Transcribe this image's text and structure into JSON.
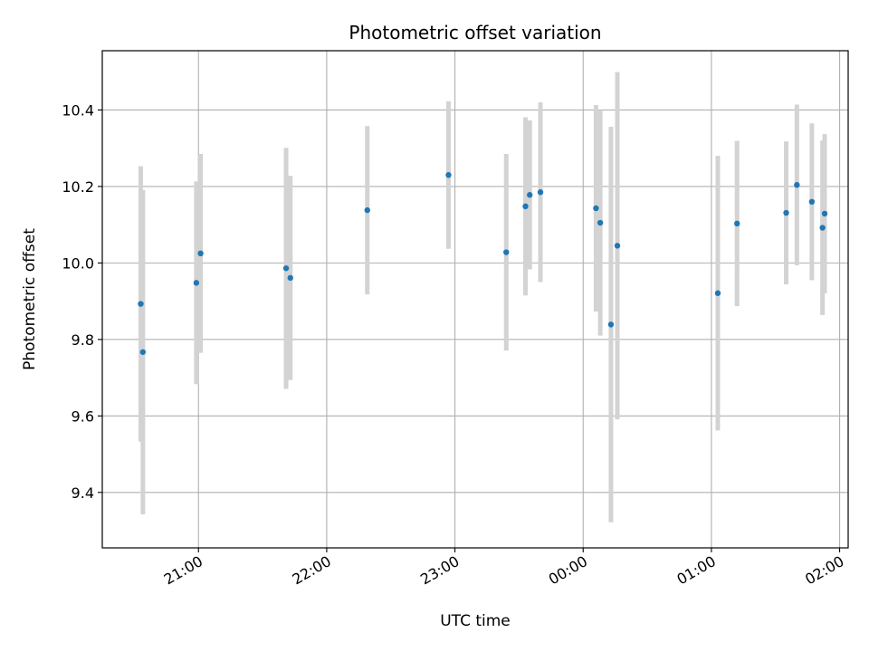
{
  "chart_data": {
    "type": "scatter",
    "title": "Photometric offset variation",
    "xlabel": "UTC time",
    "ylabel": "Photometric offset",
    "x_unit": "UTC time, hh:mm (times after midnight written as 24:xx / 25:xx)",
    "xlim": [
      "20:15",
      "26:04"
    ],
    "ylim": [
      9.255,
      10.555
    ],
    "x_ticks": [
      {
        "t": "21:00",
        "label": "21:00"
      },
      {
        "t": "22:00",
        "label": "22:00"
      },
      {
        "t": "23:00",
        "label": "23:00"
      },
      {
        "t": "24:00",
        "label": "00:00"
      },
      {
        "t": "25:00",
        "label": "01:00"
      },
      {
        "t": "26:00",
        "label": "02:00"
      }
    ],
    "y_ticks": [
      {
        "v": 9.4,
        "label": "9.4"
      },
      {
        "v": 9.6,
        "label": "9.6"
      },
      {
        "v": 9.8,
        "label": "9.8"
      },
      {
        "v": 10.0,
        "label": "10.0"
      },
      {
        "v": 10.2,
        "label": "10.2"
      },
      {
        "v": 10.4,
        "label": "10.4"
      }
    ],
    "grid": true,
    "marker_color": "#1f77b4",
    "errorbar_color": "#d3d3d3",
    "series": [
      {
        "points": [
          {
            "t": "20:33",
            "y": 9.893,
            "lo": 9.533,
            "hi": 10.253
          },
          {
            "t": "20:34",
            "y": 9.767,
            "lo": 9.343,
            "hi": 10.191
          },
          {
            "t": "20:59",
            "y": 9.948,
            "lo": 9.683,
            "hi": 10.213
          },
          {
            "t": "21:01",
            "y": 10.025,
            "lo": 9.765,
            "hi": 10.285
          },
          {
            "t": "21:41",
            "y": 9.986,
            "lo": 9.671,
            "hi": 10.301
          },
          {
            "t": "21:43",
            "y": 9.961,
            "lo": 9.694,
            "hi": 10.228
          },
          {
            "t": "22:19",
            "y": 10.138,
            "lo": 9.918,
            "hi": 10.358
          },
          {
            "t": "22:57",
            "y": 10.23,
            "lo": 10.037,
            "hi": 10.423
          },
          {
            "t": "23:24",
            "y": 10.028,
            "lo": 9.771,
            "hi": 10.285
          },
          {
            "t": "23:33",
            "y": 10.148,
            "lo": 9.915,
            "hi": 10.381
          },
          {
            "t": "23:35",
            "y": 10.178,
            "lo": 9.983,
            "hi": 10.373
          },
          {
            "t": "23:40",
            "y": 10.185,
            "lo": 9.95,
            "hi": 10.42
          },
          {
            "t": "24:06",
            "y": 10.143,
            "lo": 9.873,
            "hi": 10.413
          },
          {
            "t": "24:08",
            "y": 10.105,
            "lo": 9.81,
            "hi": 10.4
          },
          {
            "t": "24:13",
            "y": 9.839,
            "lo": 9.322,
            "hi": 10.356
          },
          {
            "t": "24:16",
            "y": 10.045,
            "lo": 9.591,
            "hi": 10.499
          },
          {
            "t": "25:03",
            "y": 9.921,
            "lo": 9.562,
            "hi": 10.28
          },
          {
            "t": "25:12",
            "y": 10.103,
            "lo": 9.887,
            "hi": 10.319
          },
          {
            "t": "25:35",
            "y": 10.131,
            "lo": 9.944,
            "hi": 10.318
          },
          {
            "t": "25:40",
            "y": 10.204,
            "lo": 9.994,
            "hi": 10.414
          },
          {
            "t": "25:47",
            "y": 10.16,
            "lo": 9.955,
            "hi": 10.365
          },
          {
            "t": "25:52",
            "y": 10.092,
            "lo": 9.864,
            "hi": 10.32
          },
          {
            "t": "25:53",
            "y": 10.129,
            "lo": 9.921,
            "hi": 10.337
          }
        ]
      }
    ]
  }
}
